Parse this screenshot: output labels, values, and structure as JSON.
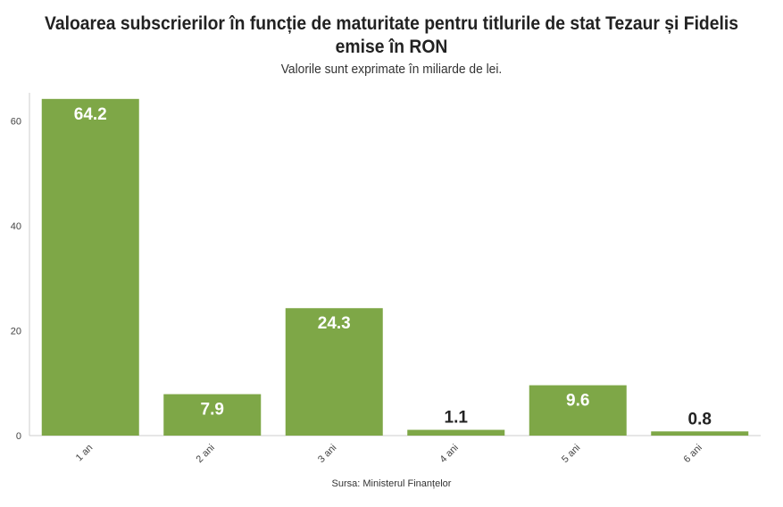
{
  "chart_data": {
    "type": "bar",
    "title": "Valoarea subscrierilor în funcție de maturitate pentru titlurile de stat Tezaur și Fidelis emise în RON",
    "subtitle": "Valorile sunt exprimate în miliarde de lei.",
    "caption": "Sursa: Ministerul Finanțelor",
    "categories": [
      "1 an",
      "2 ani",
      "3 ani",
      "4 ani",
      "5 ani",
      "6 ani"
    ],
    "values": [
      64.2,
      7.9,
      24.3,
      1.1,
      9.6,
      0.8
    ],
    "value_labels": [
      "64.2",
      "7.9",
      "24.3",
      "1.1",
      "9.6",
      "0.8"
    ],
    "ylim": [
      0,
      65
    ],
    "y_ticks": [
      0,
      20,
      40,
      60
    ],
    "xlabel": "",
    "ylabel": "",
    "grid": false,
    "colors": {
      "bar": "#7ea747",
      "label_inside": "#ffffff",
      "label_outside": "#222222",
      "axis": "#cccccc"
    }
  }
}
